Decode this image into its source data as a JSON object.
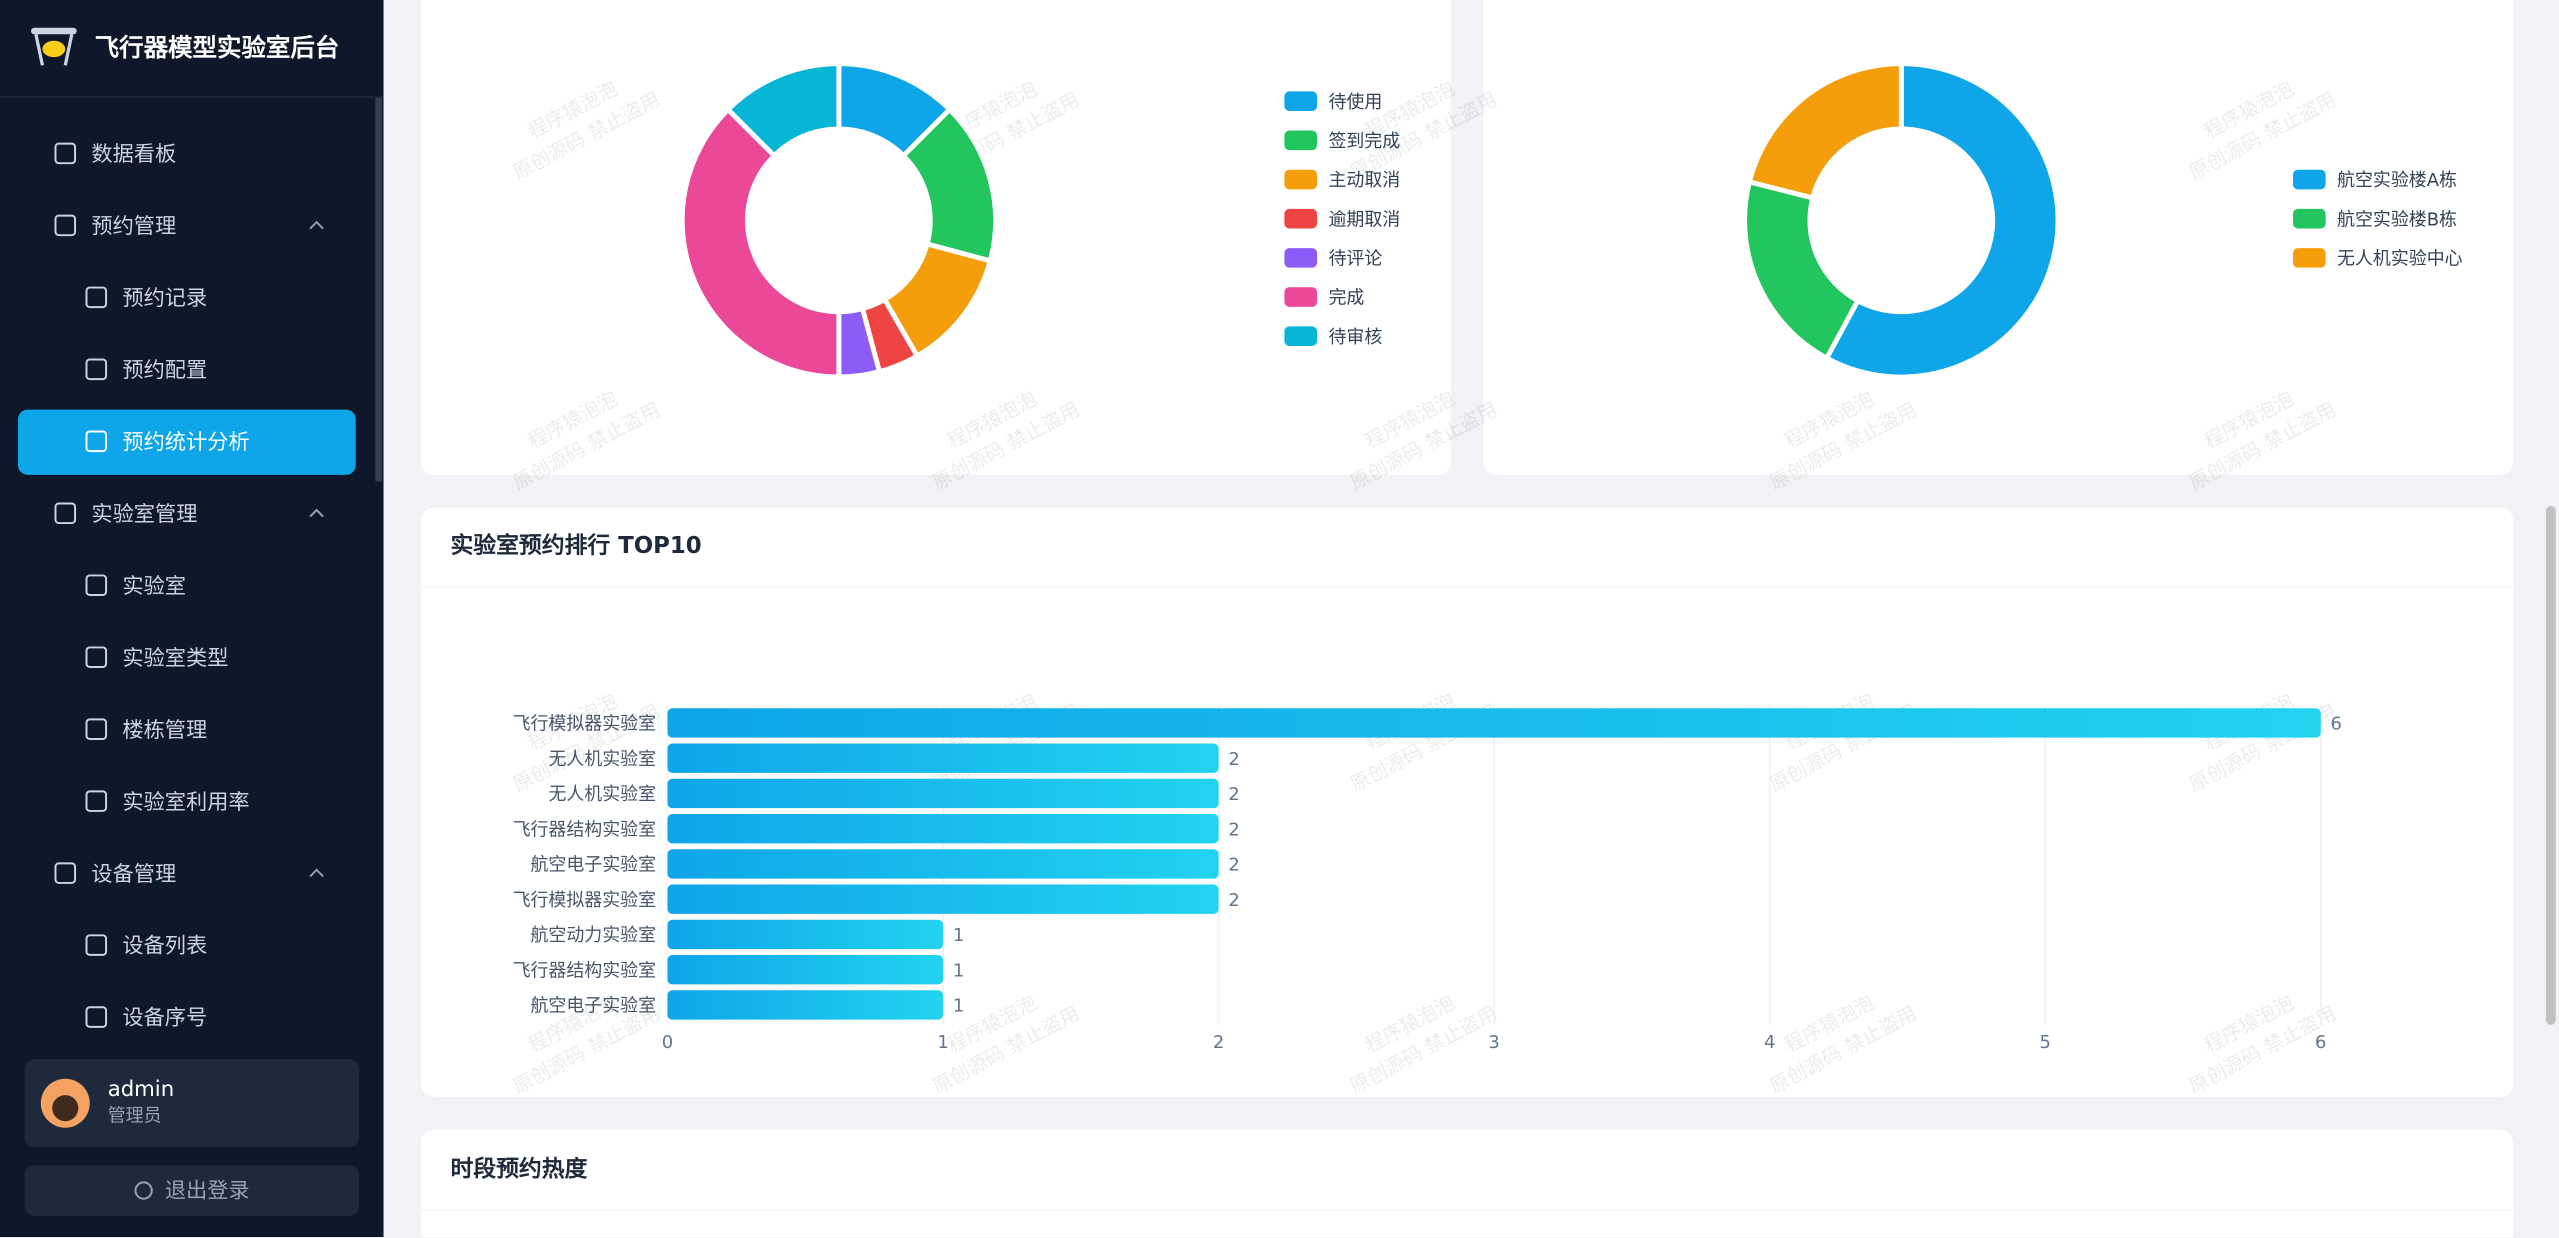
{
  "sidebar": {
    "title": "飞行器模型实验室后台",
    "menu": [
      "数据看板",
      "预约管理",
      "预约记录",
      "预约配置",
      "预约统计分析",
      "实验室管理",
      "实验室",
      "实验室类型",
      "楼栋管理",
      "实验室利用率",
      "设备管理",
      "设备列表",
      "设备序号"
    ],
    "user": {
      "name": "admin",
      "role": "管理员"
    },
    "logout": "退出登录"
  },
  "watermark": [
    "程序猿泡泡",
    "原创源码 禁止盗用"
  ],
  "chart_data": [
    {
      "type": "pie",
      "donut": true,
      "categories": [
        "待使用",
        "签到完成",
        "主动取消",
        "逾期取消",
        "待评论",
        "完成",
        "待审核"
      ],
      "values": [
        3,
        4,
        3,
        1,
        1,
        9,
        3
      ],
      "colors": [
        "#0ea5e9",
        "#22c55e",
        "#f59e0b",
        "#ef4444",
        "#8b5cf6",
        "#ec4899",
        "#06b6d4"
      ]
    },
    {
      "type": "pie",
      "donut": true,
      "categories": [
        "航空实验楼A栋",
        "航空实验楼B栋",
        "无人机实验中心"
      ],
      "values": [
        11,
        4,
        4
      ],
      "colors": [
        "#0ea5e9",
        "#22c55e",
        "#f59e0b"
      ]
    },
    {
      "type": "bar",
      "title": "实验室预约排行 TOP10",
      "categories": [
        "飞行模拟器实验室",
        "无人机实验室",
        "无人机实验室",
        "飞行器结构实验室",
        "航空电子实验室",
        "飞行模拟器实验室",
        "航空动力实验室",
        "飞行器结构实验室",
        "航空电子实验室"
      ],
      "values": [
        6,
        2,
        2,
        2,
        2,
        2,
        1,
        1,
        1
      ],
      "xlim": [
        0,
        6
      ],
      "xticks": [
        0,
        1,
        2,
        3,
        4,
        5,
        6
      ],
      "grid": true
    }
  ],
  "section": {
    "title": "时段预约热度"
  }
}
